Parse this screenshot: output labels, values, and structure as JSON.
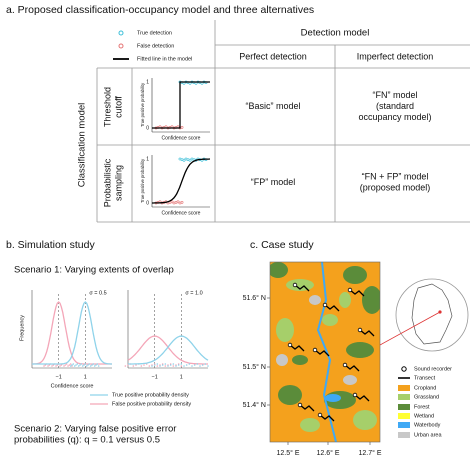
{
  "panel_a": {
    "title": "a. Proposed classification-occupancy model and three alternatives",
    "legend": [
      "True detection",
      "False detection",
      "Fitted line in the model"
    ],
    "column_group": "Detection model",
    "columns": [
      "Perfect detection",
      "Imperfect detection"
    ],
    "row_group": "Classification model",
    "rows": [
      {
        "label": [
          "Threshold",
          "cutoff"
        ],
        "plot": {
          "y_label": "True positive probability",
          "x_label": "Confidence score",
          "y_ticks": [
            "1",
            "0"
          ]
        },
        "cells": [
          [
            "“Basic” model"
          ],
          [
            "“FN” model",
            "(standard",
            "occupancy model)"
          ]
        ]
      },
      {
        "label": [
          "Probabilistic",
          "sampling"
        ],
        "plot": {
          "y_label": "True positive probability",
          "x_label": "Confidence score",
          "y_ticks": [
            "1",
            "0"
          ]
        },
        "cells": [
          [
            "“FP” model"
          ],
          [
            "“FN + FP” model",
            "(proposed model)"
          ]
        ]
      }
    ]
  },
  "panel_b": {
    "title": "b. Simulation study",
    "scenario_1": "Scenario 1: Varying extents of overlap",
    "y_label": "Frequency",
    "x_label": "Confidence score",
    "plots": [
      {
        "label": "σ = 0.5",
        "x_ticks": [
          "−1",
          "1"
        ]
      },
      {
        "label": "σ = 1.0",
        "x_ticks": [
          "−1",
          "1"
        ]
      }
    ],
    "legend": [
      "True positive probability density",
      "False positive probability density"
    ],
    "scenario_2": [
      "Scenario 2: Varying false positive error",
      "probabilities (q): q = 0.1 versus 0.5"
    ]
  },
  "panel_c": {
    "title": "c. Case study",
    "lat_labels": [
      "51.6° N",
      "51.5° N",
      "51.4° N"
    ],
    "lon_labels": [
      "12.5° E",
      "12.6° E",
      "12.7° E"
    ],
    "legend": [
      "Sound recorder",
      "Transect",
      "Cropland",
      "Grassland",
      "Forest",
      "Wetland",
      "Waterbody",
      "Urban area"
    ]
  }
}
